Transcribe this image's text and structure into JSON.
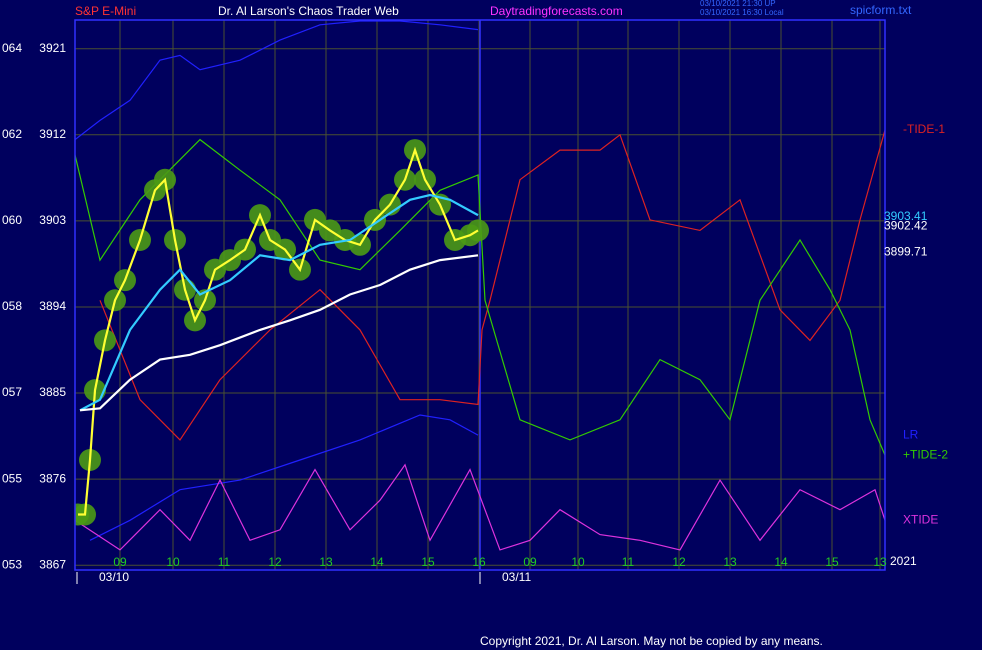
{
  "header": {
    "left": "S&P E-Mini",
    "center": "Dr. Al Larson's Chaos Trader Web",
    "site": "Daytradingforecasts.com",
    "stamp1": "03/10/2021 21:30 UP",
    "stamp2": "03/10/2021 16:30 Local",
    "file": "spicform.txt"
  },
  "footer": "Copyright 2021, Dr. Al Larson. May not be copied by any means.",
  "chart_data": {
    "type": "line",
    "ylim": [
      3866.5,
      3924
    ],
    "yticks": [
      3867,
      3876,
      3885,
      3894,
      3903,
      3912,
      3921
    ],
    "y_left_labels": [
      "053",
      "055",
      "057",
      "058",
      "060",
      "062",
      "064"
    ],
    "xlim": [
      0,
      810
    ],
    "xticks": [
      {
        "value": 45,
        "label": "09"
      },
      {
        "value": 98,
        "label": "10"
      },
      {
        "value": 149,
        "label": "11"
      },
      {
        "value": 200,
        "label": "12"
      },
      {
        "value": 251,
        "label": "13"
      },
      {
        "value": 302,
        "label": "14"
      },
      {
        "value": 353,
        "label": "15"
      },
      {
        "value": 404,
        "label": "16"
      },
      {
        "value": 455,
        "label": "09"
      },
      {
        "value": 503,
        "label": "10"
      },
      {
        "value": 553,
        "label": "11"
      },
      {
        "value": 604,
        "label": "12"
      },
      {
        "value": 655,
        "label": "13"
      },
      {
        "value": 706,
        "label": "14"
      },
      {
        "value": 757,
        "label": "15"
      },
      {
        "value": 805,
        "label": "13"
      }
    ],
    "date_ticks": [
      {
        "value": 2,
        "label": "03/10"
      },
      {
        "value": 405,
        "label": "03/11"
      }
    ],
    "year_label": "2021",
    "grid": true,
    "end_labels": [
      {
        "value": 3903.41,
        "color": "#33ccff"
      },
      {
        "value": 3902.42,
        "color": "#ffffff"
      },
      {
        "value": 3899.71,
        "color": "#ffffff"
      }
    ],
    "series": [
      {
        "color": "#2020ff",
        "x": [
          0,
          25,
          55,
          85,
          105,
          125,
          165,
          205,
          245,
          285,
          325,
          365,
          403
        ],
        "values": [
          3911.5,
          3913.5,
          3915.6,
          3919.8,
          3920.3,
          3918.8,
          3919.8,
          3921.9,
          3923.5,
          3923.9,
          3923.9,
          3923.5,
          3923.0
        ]
      },
      {
        "name": "LR",
        "color": "#2020ff",
        "x": [
          15,
          55,
          105,
          165,
          225,
          285,
          345,
          375,
          403
        ],
        "values": [
          3869.6,
          3871.7,
          3874.9,
          3875.9,
          3878.0,
          3880.1,
          3882.7,
          3882.2,
          3880.6
        ]
      },
      {
        "name": "-TIDE-1",
        "color": "#dd2222",
        "x": [
          25,
          65,
          105,
          145,
          195,
          245,
          285,
          325,
          365,
          403,
          407,
          415,
          445,
          485,
          525,
          545,
          575,
          625,
          665,
          705,
          735,
          765,
          785,
          810
        ],
        "values": [
          3894.7,
          3884.3,
          3880.1,
          3886.4,
          3891.6,
          3895.8,
          3891.6,
          3884.3,
          3884.3,
          3883.8,
          3891.6,
          3894.7,
          3907.3,
          3910.4,
          3910.4,
          3912.0,
          3903.1,
          3902.0,
          3905.2,
          3893.7,
          3890.5,
          3894.7,
          3903.1,
          3912.5
        ]
      },
      {
        "name": "+TIDE-2",
        "color": "#33cc00",
        "x": [
          0,
          25,
          65,
          125,
          165,
          205,
          245,
          285,
          325,
          365,
          403,
          410,
          445,
          495,
          545,
          585,
          625,
          655,
          685,
          725,
          755,
          775,
          795,
          810
        ],
        "values": [
          3909.9,
          3898.9,
          3905.2,
          3911.5,
          3908.3,
          3905.2,
          3898.9,
          3897.9,
          3902.0,
          3906.2,
          3907.8,
          3894.7,
          3882.2,
          3880.1,
          3882.2,
          3888.5,
          3886.4,
          3882.2,
          3894.7,
          3901.0,
          3895.8,
          3891.6,
          3882.2,
          3878.5
        ]
      },
      {
        "name": "XTIDE",
        "color": "#dd33dd",
        "x": [
          0,
          45,
          85,
          115,
          145,
          175,
          205,
          240,
          275,
          305,
          330,
          355,
          395,
          425,
          455,
          485,
          525,
          565,
          605,
          645,
          685,
          725,
          765,
          800,
          810
        ],
        "values": [
          3871.7,
          3868.6,
          3872.8,
          3869.6,
          3875.9,
          3869.6,
          3870.7,
          3877.0,
          3870.7,
          3873.8,
          3877.5,
          3869.6,
          3877.0,
          3868.6,
          3869.6,
          3872.8,
          3870.2,
          3869.6,
          3868.6,
          3875.9,
          3869.6,
          3874.9,
          3872.8,
          3874.9,
          3871.7
        ]
      },
      {
        "color": "#ffff33",
        "markers": true,
        "marker_color": "#4b9a15",
        "x": [
          3,
          10,
          15,
          20,
          30,
          40,
          50,
          65,
          80,
          90,
          100,
          110,
          120,
          130,
          140,
          155,
          170,
          185,
          195,
          210,
          225,
          240,
          255,
          270,
          285,
          300,
          315,
          330,
          340,
          350,
          365,
          380,
          395,
          403
        ],
        "values": [
          3872.3,
          3872.3,
          3878.0,
          3885.3,
          3890.5,
          3894.7,
          3896.8,
          3901.0,
          3906.2,
          3907.3,
          3901.0,
          3895.8,
          3892.6,
          3894.7,
          3897.9,
          3898.9,
          3900.0,
          3903.6,
          3901.0,
          3900.0,
          3897.9,
          3903.1,
          3902.0,
          3901.0,
          3900.5,
          3903.1,
          3904.7,
          3907.3,
          3910.4,
          3907.3,
          3904.7,
          3901.0,
          3901.5,
          3902.0
        ]
      },
      {
        "color": "#33ccff",
        "x": [
          5,
          25,
          55,
          85,
          105,
          125,
          155,
          185,
          215,
          245,
          275,
          305,
          335,
          355,
          375,
          403
        ],
        "values": [
          3883.2,
          3884.3,
          3891.6,
          3895.8,
          3897.9,
          3895.3,
          3896.8,
          3899.4,
          3898.9,
          3900.5,
          3901.0,
          3903.1,
          3905.2,
          3905.7,
          3905.2,
          3903.6
        ]
      },
      {
        "color": "#ffffff",
        "x": [
          5,
          25,
          55,
          85,
          115,
          145,
          185,
          215,
          245,
          275,
          305,
          335,
          365,
          403
        ],
        "values": [
          3883.2,
          3883.4,
          3886.4,
          3888.5,
          3889.0,
          3890.0,
          3891.6,
          3892.6,
          3893.7,
          3895.3,
          3896.3,
          3897.9,
          3898.9,
          3899.4
        ]
      }
    ]
  }
}
